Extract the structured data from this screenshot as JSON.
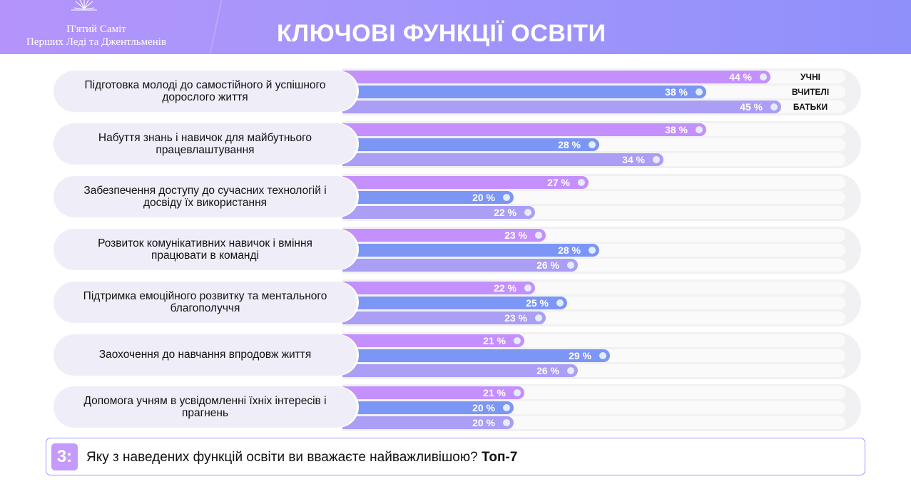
{
  "header": {
    "org_line1": "П'ятий Саміт",
    "org_line2": "Перших Леді та Джентльменів",
    "title": "КЛЮЧОВІ ФУНКЦІЇ ОСВІТИ"
  },
  "question": {
    "badge": "3:",
    "text": "Яку з наведених функцій освіти ви вважаєте найважливішою?",
    "suffix": "Топ-7"
  },
  "colors": {
    "students": "#c490fd",
    "teachers": "#7c96f6",
    "parents": "#aa9ef5"
  },
  "chart_data": {
    "type": "bar",
    "orientation": "horizontal",
    "unit": "%",
    "xlim": [
      0,
      50
    ],
    "legend": [
      "УЧНІ",
      "ВЧИТЕЛІ",
      "БАТЬКИ"
    ],
    "categories": [
      "Підготовка молоді до самостійного й успішного дорослого життя",
      "Набуття знань і навичок для майбутнього працевлаштування",
      "Забезпечення доступу до сучасних технологій і досвіду їх використання",
      "Розвиток комунікативних навичок і вміння працювати в команді",
      "Підтримка емоційного розвитку та ментального благополуччя",
      "Заохочення до навчання впродовж життя",
      "Допомога учням в усвідомленні їхніх інтересів і прагнень"
    ],
    "series": [
      {
        "name": "УЧНІ",
        "values": [
          44,
          38,
          27,
          23,
          22,
          21,
          21
        ]
      },
      {
        "name": "ВЧИТЕЛІ",
        "values": [
          38,
          28,
          20,
          28,
          25,
          29,
          20
        ]
      },
      {
        "name": "БАТЬКИ",
        "values": [
          45,
          34,
          22,
          26,
          23,
          26,
          20
        ]
      }
    ]
  }
}
